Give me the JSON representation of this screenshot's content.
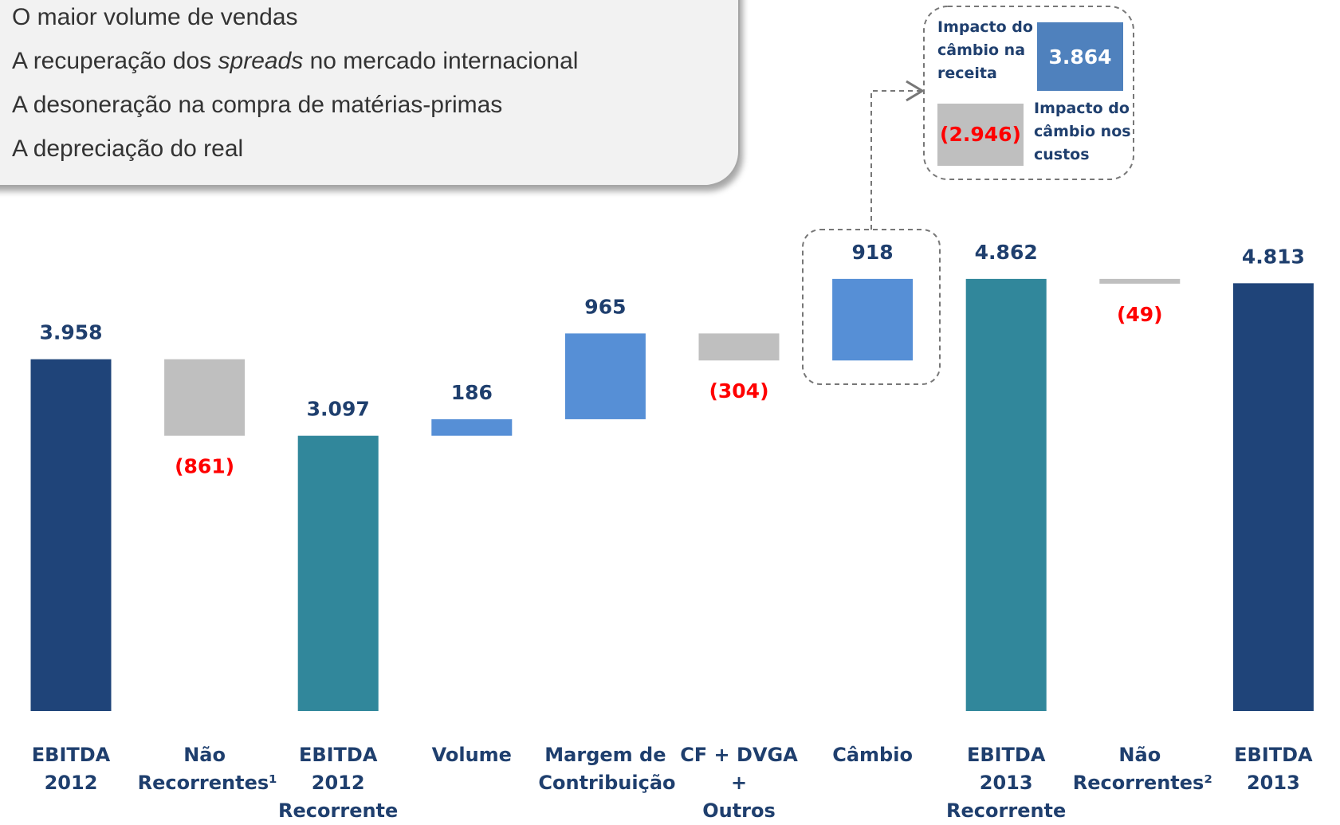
{
  "bullets": [
    "O maior volume de vendas",
    [
      "A recuperação dos ",
      "spreads",
      " no mercado internacional"
    ],
    "A desoneração na compra de matérias-primas",
    "A depreciação do real"
  ],
  "chart_data": {
    "type": "waterfall",
    "categories": [
      "EBITDA 2012",
      "Não\nRecorrentes¹",
      "EBITDA 2012\nRecorrente",
      "Volume",
      "Margem de\nContribuição",
      "CF + DVGA +\nOutros",
      "Câmbio",
      "EBITDA 2013\nRecorrente",
      "Não\nRecorrentes²",
      "EBITDA 2013"
    ],
    "values": [
      3958,
      -861,
      3097,
      186,
      965,
      -304,
      918,
      4862,
      -49,
      4813
    ],
    "value_labels": [
      "3.958",
      "(861)",
      "3.097",
      "186",
      "965",
      "(304)",
      "918",
      "4.862",
      "(49)",
      "4.813"
    ],
    "measure": [
      "absolute",
      "relative",
      "absolute",
      "relative",
      "relative",
      "relative",
      "relative",
      "absolute",
      "relative",
      "absolute"
    ],
    "colors": [
      "#1f4479",
      "#bfbfbf",
      "#31879b",
      "#568fd6",
      "#568fd6",
      "#bfbfbf",
      "#568fd6",
      "#31879b",
      "#bfbfbf",
      "#1f4479"
    ],
    "inset": {
      "revenue": {
        "label": "Impacto do\ncâmbio na\nreceita",
        "value": 3864,
        "value_label": "3.864",
        "color": "#4f81bd"
      },
      "costs": {
        "label": "Impacto do\ncâmbio nos\ncustos",
        "value": -2946,
        "value_label": "(2.946)",
        "color": "#bfbfbf"
      }
    }
  }
}
